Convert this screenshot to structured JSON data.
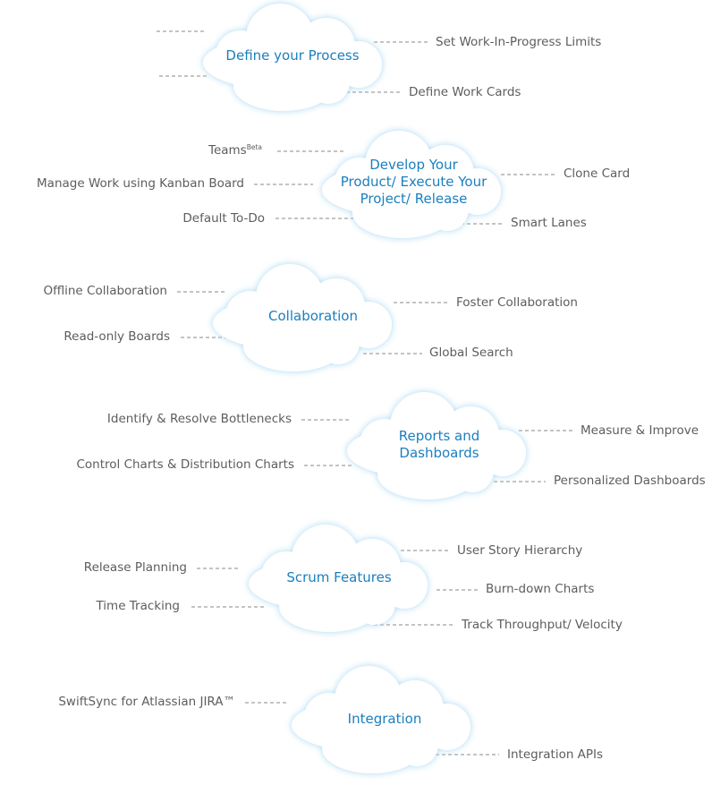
{
  "clouds": [
    {
      "title": "Define your Process",
      "labels": [
        "Set Work-In-Progress Limits",
        "Define Work Cards"
      ]
    },
    {
      "title": "Develop Your Product/ Execute Your Project/ Release",
      "title_lines": [
        "Develop Your",
        "Product/ Execute Your",
        "Project/ Release"
      ],
      "labels": [
        "Teams",
        "Beta",
        "Manage Work using Kanban Board",
        "Default To-Do",
        "Clone Card",
        "Smart Lanes"
      ]
    },
    {
      "title": "Collaboration",
      "labels": [
        "Offline Collaboration",
        "Read-only Boards",
        "Foster Collaboration",
        "Global Search"
      ]
    },
    {
      "title": "Reports and Dashboards",
      "title_lines": [
        "Reports and",
        "Dashboards"
      ],
      "labels": [
        "Identify & Resolve Bottlenecks",
        "Control Charts & Distribution Charts",
        "Measure & Improve",
        "Personalized Dashboards"
      ]
    },
    {
      "title": "Scrum Features",
      "labels": [
        "Release Planning",
        "Time Tracking",
        "User Story Hierarchy",
        "Burn-down Charts",
        "Track Throughput/ Velocity"
      ]
    },
    {
      "title": "Integration",
      "labels": [
        "SwiftSync for Atlassian JIRA™",
        "Integration APIs"
      ]
    }
  ],
  "colors": {
    "cloud_fill": "#ffffff",
    "cloud_glow": "#a9d8f2",
    "title": "#1b7fbe",
    "label": "#5d5d5d",
    "dash": "#8a8a8a"
  }
}
